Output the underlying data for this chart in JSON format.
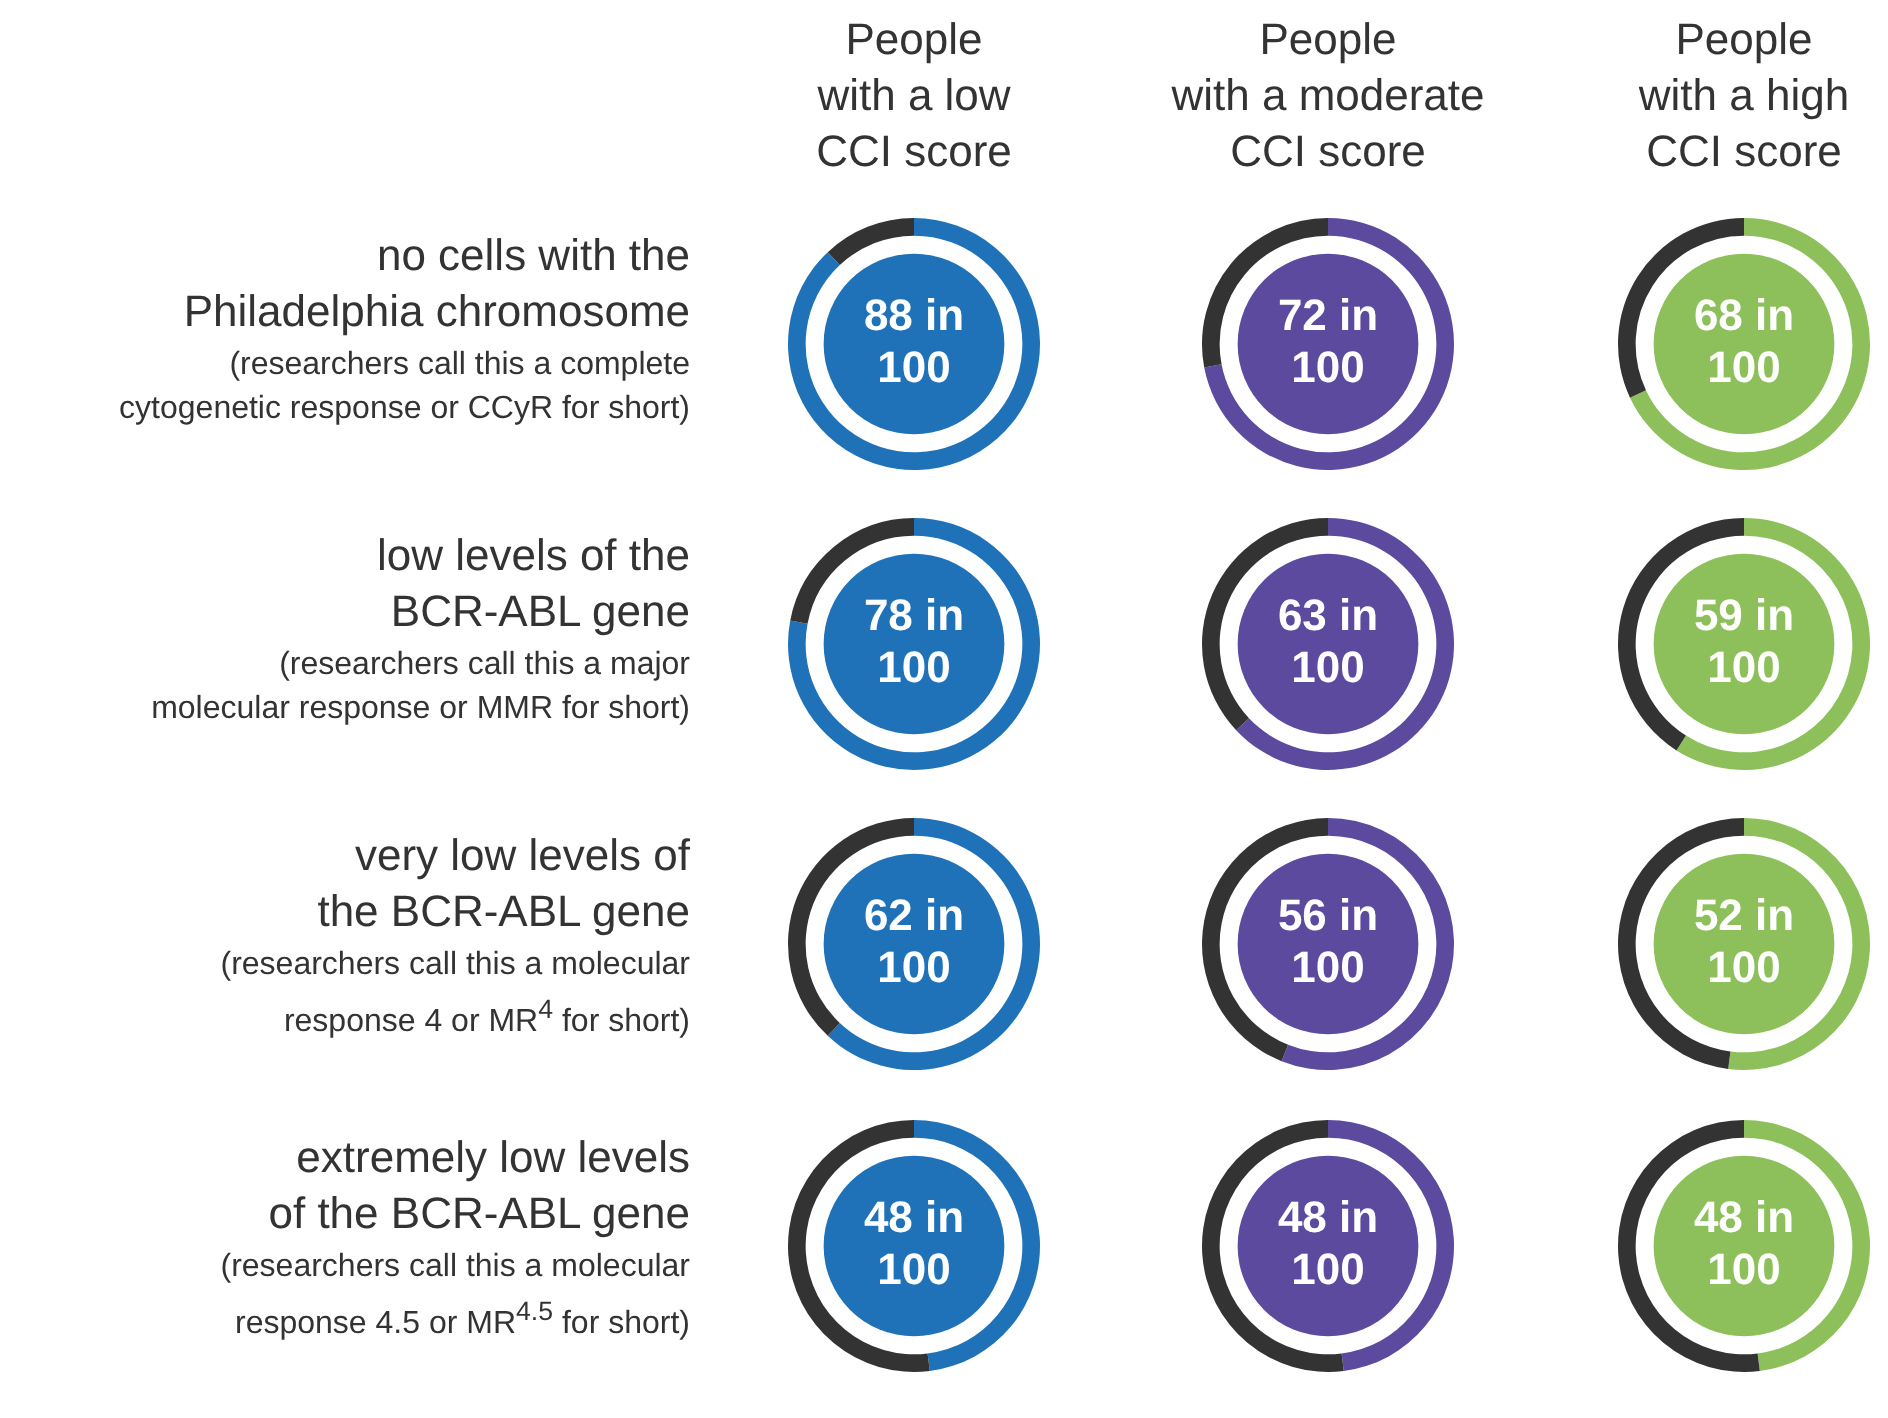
{
  "chart_data": [
    {
      "type": "other",
      "annotations": [
        "People\nwith a low\nCCI score",
        "People\nwith a moderate\nCCI score",
        "People\nwith a high\nCCI score",
        "no cells with the\nPhiladelphia chromosome",
        "(researchers call this a complete\ncytogenetic response or CCyR for short)",
        "low levels of the\nBCR-ABL gene",
        "(researchers call this a major\nmolecular response or MMR for short)",
        "very low levels of\nthe BCR-ABL gene",
        "(researchers call this a molecular\nresponse 4 or MR$^{4}$ for short)",
        "extremely low levels\nof the BCR-ABL gene",
        "(researchers call this a molecular\nresponse 4.5 or MR$^{4.5}$ for short)"
      ]
    },
    {
      "type": "donut",
      "categories": [
        null,
        null
      ],
      "values": [
        88,
        12
      ],
      "colors": [
        "#1f72b8",
        "#333333"
      ],
      "value_labels": [
        "88 in 100",
        null
      ]
    },
    {
      "type": "donut",
      "categories": [
        null,
        null
      ],
      "values": [
        72,
        28
      ],
      "colors": [
        "#5b4a9e",
        "#333333"
      ],
      "value_labels": [
        "72 in 100",
        null
      ]
    },
    {
      "type": "donut",
      "categories": [
        null,
        null
      ],
      "values": [
        68,
        32
      ],
      "colors": [
        "#8dc05a",
        "#333333"
      ],
      "value_labels": [
        "68 in 100",
        null
      ]
    },
    {
      "type": "donut",
      "categories": [
        null,
        null
      ],
      "values": [
        78,
        22
      ],
      "colors": [
        "#1f72b8",
        "#333333"
      ],
      "value_labels": [
        "78 in 100",
        null
      ]
    },
    {
      "type": "donut",
      "categories": [
        null,
        null
      ],
      "values": [
        63,
        37
      ],
      "colors": [
        "#5b4a9e",
        "#333333"
      ],
      "value_labels": [
        "63 in 100",
        null
      ]
    },
    {
      "type": "donut",
      "categories": [
        null,
        null
      ],
      "values": [
        59,
        41
      ],
      "colors": [
        "#8dc05a",
        "#333333"
      ],
      "value_labels": [
        "59 in 100",
        null
      ]
    },
    {
      "type": "donut",
      "categories": [
        null,
        null
      ],
      "values": [
        62,
        38
      ],
      "colors": [
        "#1f72b8",
        "#333333"
      ],
      "value_labels": [
        "62 in 100",
        null
      ]
    },
    {
      "type": "donut",
      "categories": [
        null,
        null
      ],
      "values": [
        56,
        44
      ],
      "colors": [
        "#5b4a9e",
        "#333333"
      ],
      "value_labels": [
        "56 in 100",
        null
      ]
    },
    {
      "type": "donut",
      "categories": [
        null,
        null
      ],
      "values": [
        52,
        48
      ],
      "colors": [
        "#8dc05a",
        "#333333"
      ],
      "value_labels": [
        "52 in 100",
        null
      ]
    },
    {
      "type": "donut",
      "categories": [
        null,
        null
      ],
      "values": [
        48,
        52
      ],
      "colors": [
        "#1f72b8",
        "#333333"
      ],
      "value_labels": [
        "48 in 100",
        null
      ]
    },
    {
      "type": "donut",
      "categories": [
        null,
        null
      ],
      "values": [
        48,
        52
      ],
      "colors": [
        "#5b4a9e",
        "#333333"
      ],
      "value_labels": [
        "48 in 100",
        null
      ]
    },
    {
      "type": "donut",
      "categories": [
        null,
        null
      ],
      "values": [
        48,
        52
      ],
      "colors": [
        "#8dc05a",
        "#333333"
      ],
      "value_labels": [
        "48 in 100",
        null
      ]
    }
  ]
}
